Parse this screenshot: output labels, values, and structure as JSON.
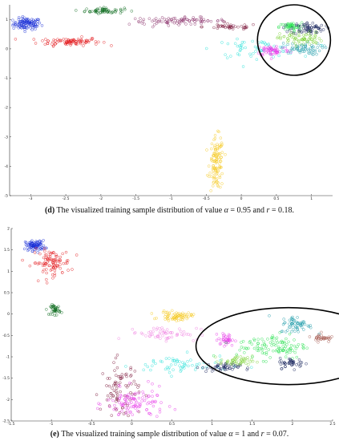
{
  "figure": {
    "colors": {
      "blue": "#1a2fd6",
      "red": "#e3191c",
      "darkgreen": "#0d6b1f",
      "purple": "#8a2f6a",
      "maroon": "#7a1538",
      "cyan": "#26e0d8",
      "yellow": "#f4c81d",
      "pink": "#f07fe0",
      "magenta": "#e637e8",
      "green": "#25e04d",
      "lime": "#7fd23a",
      "navy": "#0d1a55",
      "teal": "#1b9aa8",
      "brown": "#a4574d",
      "black": "#000000"
    },
    "panels": [
      {
        "id": "d",
        "caption": {
          "label": "(d)",
          "text_before": "The visualized training sample distribution of value",
          "alpha_symbol": "α",
          "alpha_value": "= 0.95",
          "and_text": "and",
          "r_symbol": "r",
          "r_value": "= 0.18."
        },
        "chart_data": {
          "type": "scatter",
          "xlim": [
            -3.3,
            1.3
          ],
          "ylim": [
            -5,
            1.5
          ],
          "x_ticks": [
            "-3",
            "-2.5",
            "-2",
            "-1.5",
            "-1",
            "-0.5",
            "0",
            "0.5",
            "1"
          ],
          "y_ticks": [
            "1",
            "0",
            "-1",
            "-2",
            "-3",
            "-4",
            "-5"
          ],
          "clusters": [
            {
              "color": "blue",
              "center": [
                -3.05,
                0.85
              ],
              "spread": [
                0.1,
                0.1
              ],
              "count": 110
            },
            {
              "color": "red",
              "center": [
                -2.45,
                0.25
              ],
              "spread": [
                0.22,
                0.07
              ],
              "count": 90
            },
            {
              "color": "darkgreen",
              "center": [
                -1.95,
                1.3
              ],
              "spread": [
                0.14,
                0.05
              ],
              "count": 60
            },
            {
              "color": "purple",
              "center": [
                -0.9,
                0.95
              ],
              "spread": [
                0.35,
                0.06
              ],
              "count": 90
            },
            {
              "color": "maroon",
              "center": [
                -0.15,
                0.75
              ],
              "spread": [
                0.2,
                0.05
              ],
              "count": 40
            },
            {
              "color": "yellow",
              "center": [
                -0.35,
                -3.9
              ],
              "spread": [
                0.05,
                0.45
              ],
              "count": 110
            },
            {
              "color": "cyan",
              "center": [
                0.2,
                0.0
              ],
              "spread": [
                0.3,
                0.15
              ],
              "count": 60
            },
            {
              "color": "green",
              "center": [
                0.7,
                0.75
              ],
              "spread": [
                0.08,
                0.07
              ],
              "count": 50
            },
            {
              "color": "magenta",
              "center": [
                0.45,
                -0.05
              ],
              "spread": [
                0.12,
                0.1
              ],
              "count": 60
            },
            {
              "color": "navy",
              "center": [
                0.95,
                0.7
              ],
              "spread": [
                0.12,
                0.1
              ],
              "count": 70
            },
            {
              "color": "teal",
              "center": [
                0.85,
                0.0
              ],
              "spread": [
                0.15,
                0.1
              ],
              "count": 60
            },
            {
              "color": "lime",
              "center": [
                0.85,
                0.35
              ],
              "spread": [
                0.15,
                0.12
              ],
              "count": 70
            }
          ],
          "annotation": {
            "shape": "ellipse",
            "center": [
              0.75,
              0.3
            ],
            "radii": [
              0.52,
              1.2
            ]
          }
        }
      },
      {
        "id": "e",
        "caption": {
          "label": "(e)",
          "text_before": "The visualized training sample distribution of value",
          "alpha_symbol": "α",
          "alpha_value": "= 1",
          "and_text": "and",
          "r_symbol": "r",
          "r_value": "= 0.07."
        },
        "chart_data": {
          "type": "scatter",
          "xlim": [
            -1.5,
            2.5
          ],
          "ylim": [
            -2.5,
            2
          ],
          "x_ticks": [
            "-1.5",
            "-1",
            "-0.5",
            "0",
            "0.5",
            "1",
            "1.5",
            "2",
            "2.5"
          ],
          "y_ticks": [
            "2",
            "1.5",
            "1",
            "0.5",
            "0",
            "-0.5",
            "-1",
            "-1.5",
            "-2",
            "-2.5"
          ],
          "clusters": [
            {
              "color": "blue",
              "center": [
                -1.2,
                1.6
              ],
              "spread": [
                0.06,
                0.06
              ],
              "count": 90
            },
            {
              "color": "red",
              "center": [
                -1.0,
                1.2
              ],
              "spread": [
                0.12,
                0.15
              ],
              "count": 100
            },
            {
              "color": "darkgreen",
              "center": [
                -0.95,
                0.1
              ],
              "spread": [
                0.03,
                0.06
              ],
              "count": 40
            },
            {
              "color": "maroon",
              "center": [
                -0.15,
                -1.8
              ],
              "spread": [
                0.12,
                0.35
              ],
              "count": 90
            },
            {
              "color": "magenta",
              "center": [
                0.05,
                -2.1
              ],
              "spread": [
                0.18,
                0.18
              ],
              "count": 110
            },
            {
              "color": "cyan",
              "center": [
                0.6,
                -1.2
              ],
              "spread": [
                0.3,
                0.12
              ],
              "count": 60
            },
            {
              "color": "yellow",
              "center": [
                0.55,
                -0.05
              ],
              "spread": [
                0.1,
                0.05
              ],
              "count": 70
            },
            {
              "color": "pink",
              "center": [
                0.4,
                -0.45
              ],
              "spread": [
                0.22,
                0.08
              ],
              "count": 60
            },
            {
              "color": "navy",
              "center": [
                1.1,
                -1.25
              ],
              "spread": [
                0.12,
                0.05
              ],
              "count": 50
            },
            {
              "color": "lime",
              "center": [
                1.3,
                -1.1
              ],
              "spread": [
                0.1,
                0.06
              ],
              "count": 50
            },
            {
              "color": "magenta",
              "center": [
                1.18,
                -0.6
              ],
              "spread": [
                0.05,
                0.07
              ],
              "count": 40
            },
            {
              "color": "green",
              "center": [
                1.75,
                -0.75
              ],
              "spread": [
                0.22,
                0.15
              ],
              "count": 110
            },
            {
              "color": "navy",
              "center": [
                2.0,
                -1.15
              ],
              "spread": [
                0.08,
                0.06
              ],
              "count": 40
            },
            {
              "color": "teal",
              "center": [
                2.05,
                -0.25
              ],
              "spread": [
                0.1,
                0.1
              ],
              "count": 60
            },
            {
              "color": "brown",
              "center": [
                2.4,
                -0.55
              ],
              "spread": [
                0.08,
                0.05
              ],
              "count": 40
            }
          ],
          "annotation": {
            "shape": "ellipse",
            "center": [
              1.95,
              -0.75
            ],
            "radii": [
              1.15,
              0.9
            ]
          }
        }
      }
    ]
  }
}
